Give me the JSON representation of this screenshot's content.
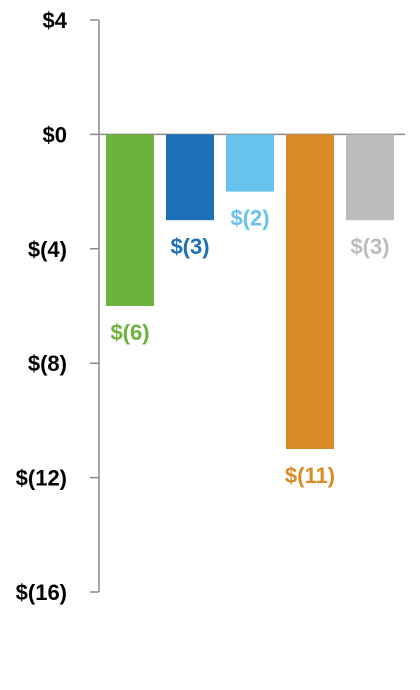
{
  "chart_data": {
    "type": "bar",
    "categories": [
      "",
      "",
      "",
      "",
      ""
    ],
    "values": [
      -6,
      -3,
      -2,
      -11,
      -3
    ],
    "value_labels": [
      "$(6)",
      "$(3)",
      "$(2)",
      "$(11)",
      "$(3)"
    ],
    "colors": [
      "#6cb33e",
      "#1d6fb8",
      "#67c3ee",
      "#d98b26",
      "#bcbcbc"
    ],
    "title": "",
    "xlabel": "",
    "ylabel": "",
    "ylim": [
      -16,
      4
    ],
    "yticks": [
      4,
      0,
      -4,
      -8,
      -12,
      -16
    ],
    "ytick_labels": [
      "$4",
      "$0",
      "$(4)",
      "$(8)",
      "$(12)",
      "$(16)"
    ],
    "grid": false,
    "legend": "none"
  }
}
